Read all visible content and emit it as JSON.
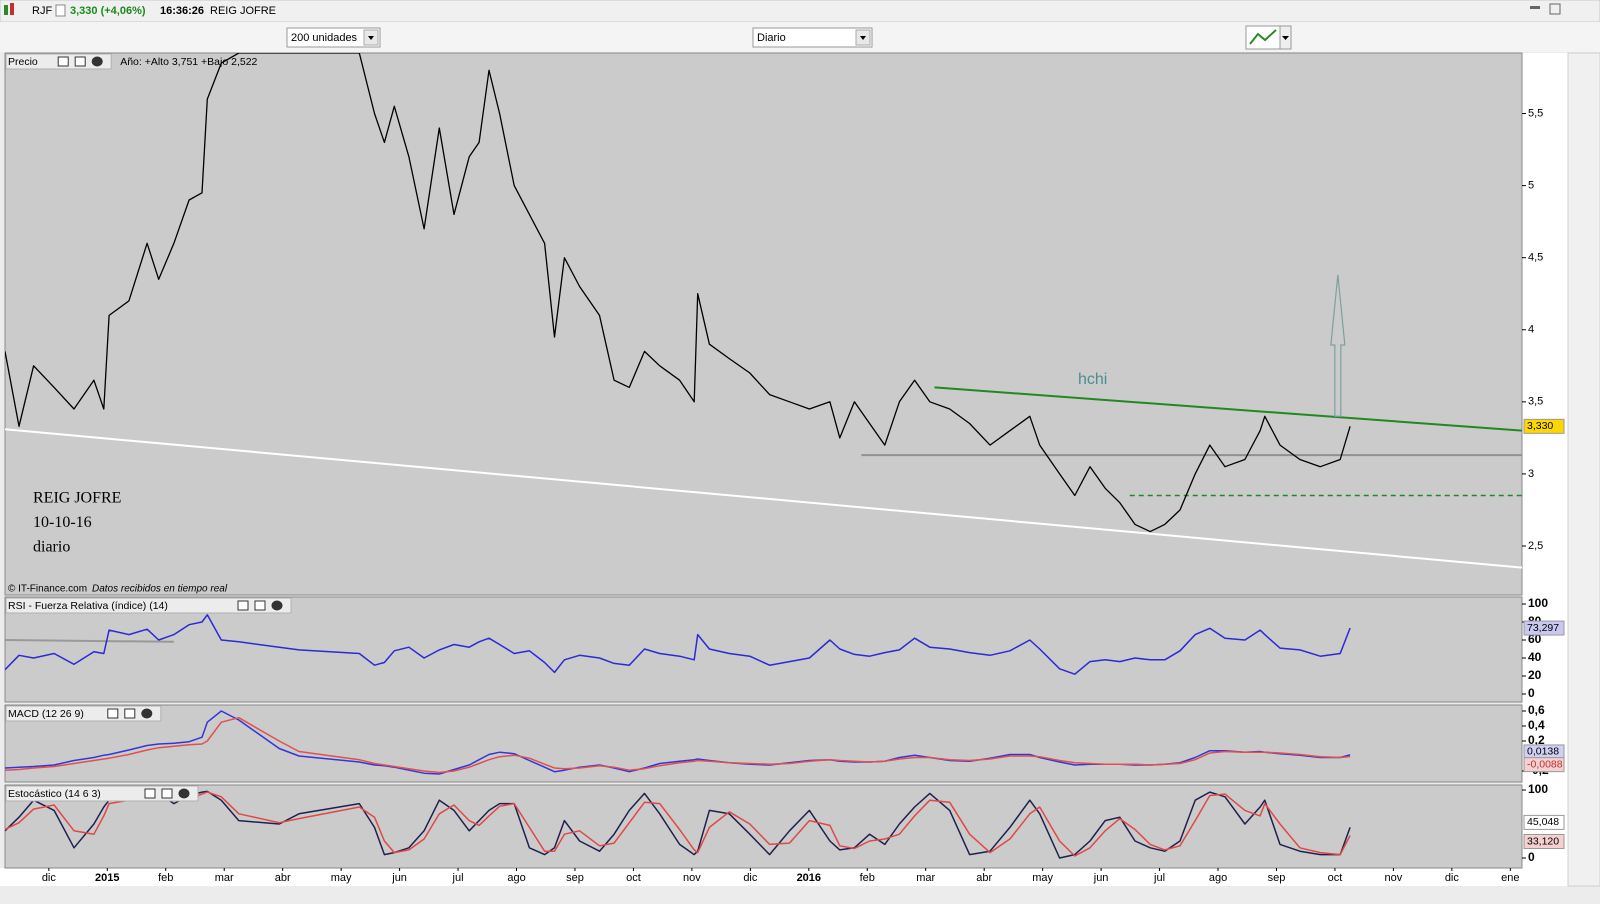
{
  "toolbar": {
    "symbol": "RJF",
    "quote": "3,330 (+4,06%)",
    "time": "16:36:26",
    "name": "REIG JOFRE",
    "units": "200 unidades",
    "period": "Diario"
  },
  "chart_data": [
    {
      "type": "line",
      "title": "Precio",
      "subtitle": "Año: +Alto 3,751 +Bajo 2,522",
      "xlim": [
        -0.75,
        25.2
      ],
      "ylim": [
        2.16,
        5.92
      ],
      "yticks": [
        {
          "value": 2.5,
          "label": "2,5"
        },
        3,
        {
          "value": 3.5,
          "label": "3,5"
        },
        4,
        {
          "value": 4.5,
          "label": "4,5"
        },
        5,
        {
          "value": 5.5,
          "label": "5,5"
        }
      ],
      "x": [
        -0.75,
        -0.51,
        -0.26,
        0.09,
        0.43,
        0.77,
        0.94,
        1.03,
        1.37,
        1.68,
        1.88,
        2.14,
        2.4,
        2.62,
        2.71,
        2.95,
        3.25,
        3.94,
        4.28,
        5.31,
        5.57,
        5.74,
        5.91,
        6.16,
        6.42,
        6.68,
        6.93,
        7.19,
        7.36,
        7.53,
        7.71,
        7.96,
        8.22,
        8.48,
        8.65,
        8.82,
        9.08,
        9.42,
        9.67,
        9.93,
        10.19,
        10.45,
        10.79,
        11.04,
        11.1,
        11.3,
        11.64,
        11.99,
        12.33,
        12.67,
        13.01,
        13.36,
        13.53,
        13.78,
        14.04,
        14.3,
        14.55,
        14.81,
        15.07,
        15.41,
        15.75,
        16.1,
        16.44,
        16.78,
        16.95,
        17.29,
        17.55,
        17.81,
        18.07,
        18.32,
        18.58,
        18.84,
        19.09,
        19.35,
        19.61,
        19.86,
        20.12,
        20.46,
        20.72,
        20.8,
        21.06,
        21.4,
        21.75,
        22.09,
        22.26
      ],
      "series": [
        {
          "color": "#000000",
          "last_label": "3,330",
          "label_fill": "#ffd700",
          "values": [
            3.85,
            3.33,
            3.75,
            3.6,
            3.45,
            3.65,
            3.45,
            4.1,
            4.2,
            4.6,
            4.35,
            4.6,
            4.9,
            4.95,
            5.6,
            5.85,
            5.92,
            5.92,
            5.92,
            5.92,
            5.5,
            5.3,
            5.55,
            5.2,
            4.7,
            5.4,
            4.8,
            5.2,
            5.3,
            5.8,
            5.5,
            5.0,
            4.8,
            4.6,
            3.95,
            4.5,
            4.3,
            4.1,
            3.65,
            3.6,
            3.85,
            3.75,
            3.65,
            3.5,
            4.25,
            3.9,
            3.8,
            3.7,
            3.55,
            3.5,
            3.45,
            3.5,
            3.25,
            3.5,
            3.35,
            3.2,
            3.5,
            3.65,
            3.5,
            3.45,
            3.35,
            3.2,
            3.3,
            3.4,
            3.2,
            3.0,
            2.85,
            3.05,
            2.9,
            2.8,
            2.65,
            2.6,
            2.65,
            2.75,
            3.0,
            3.2,
            3.05,
            3.1,
            3.3,
            3.4,
            3.2,
            3.1,
            3.05,
            3.1,
            3.33
          ]
        }
      ],
      "trend_lines": [
        {
          "x": [
            -0.75,
            25.2
          ],
          "y": [
            3.31,
            2.35
          ],
          "color": "#ffffff"
        },
        {
          "x": [
            15.15,
            25.2
          ],
          "y": [
            3.6,
            3.3
          ],
          "color": "#1f8a1f"
        },
        {
          "x": [
            13.9,
            25.2
          ],
          "y": [
            3.13,
            3.13
          ],
          "color": "#909090"
        },
        {
          "x": [
            18.49,
            25.2
          ],
          "y": [
            2.85,
            2.85
          ],
          "color": "#1f8a1f",
          "dashed": true
        },
        {
          "x": [
            22.05,
            22.05
          ],
          "y": [
            3.4,
            4.38
          ],
          "color": "#7f9f9f",
          "arrow": true
        }
      ],
      "pattern_label": "hchi",
      "annotations": [
        "REIG JOFRE",
        "10-10-16",
        "diario"
      ],
      "credit": "© IT-Finance.com",
      "credit_note": "Datos recibidos en tiempo real"
    },
    {
      "type": "line",
      "title": "RSI - Fuerza Relativa (índice) (14)",
      "xlim": [
        -0.75,
        25.2
      ],
      "ylim": [
        -8.9,
        107.8
      ],
      "yticks": [
        0,
        20,
        40,
        60,
        80,
        100
      ],
      "x": [
        -0.75,
        -0.51,
        -0.26,
        0.09,
        0.43,
        0.77,
        0.94,
        1.03,
        1.37,
        1.68,
        1.88,
        2.14,
        2.4,
        2.62,
        2.71,
        2.95,
        3.25,
        3.94,
        4.28,
        5.31,
        5.57,
        5.74,
        5.91,
        6.16,
        6.42,
        6.68,
        6.93,
        7.19,
        7.36,
        7.53,
        7.71,
        7.96,
        8.22,
        8.48,
        8.65,
        8.82,
        9.08,
        9.42,
        9.67,
        9.93,
        10.19,
        10.45,
        10.79,
        11.04,
        11.1,
        11.3,
        11.64,
        11.99,
        12.33,
        12.67,
        13.01,
        13.36,
        13.53,
        13.78,
        14.04,
        14.3,
        14.55,
        14.81,
        15.07,
        15.41,
        15.75,
        16.1,
        16.44,
        16.78,
        16.95,
        17.29,
        17.55,
        17.81,
        18.07,
        18.32,
        18.58,
        18.84,
        19.09,
        19.35,
        19.61,
        19.86,
        20.12,
        20.46,
        20.72,
        20.8,
        21.06,
        21.4,
        21.75,
        22.09,
        22.26
      ],
      "series": [
        {
          "color": "#2a2ad6",
          "last_label": "73,297",
          "label_fill": "#c8c8f0",
          "values": [
            27,
            43,
            40,
            45,
            33,
            47,
            45,
            71,
            66,
            72,
            60,
            66,
            77,
            80,
            88,
            60,
            58,
            52,
            49,
            45,
            32,
            35,
            48,
            52,
            40,
            49,
            55,
            52,
            58,
            62,
            55,
            45,
            48,
            35,
            24,
            38,
            43,
            40,
            34,
            32,
            50,
            45,
            42,
            38,
            66,
            50,
            45,
            42,
            32,
            36,
            40,
            60,
            50,
            44,
            42,
            46,
            49,
            62,
            52,
            50,
            46,
            43,
            48,
            60,
            50,
            28,
            22,
            36,
            38,
            36,
            40,
            38,
            38,
            48,
            66,
            73,
            62,
            60,
            71,
            66,
            51,
            49,
            42,
            45,
            73.297
          ]
        }
      ],
      "trend_lines": [
        {
          "x": [
            -0.75,
            2.14
          ],
          "y": [
            60,
            58
          ],
          "color": "#999999"
        }
      ]
    },
    {
      "type": "line",
      "title": "MACD (12 26 9)",
      "xlim": [
        -0.75,
        25.2
      ],
      "ylim": [
        -0.347,
        0.68
      ],
      "yticks": [
        {
          "value": -0.2,
          "label": "-0,2"
        },
        {
          "value": 0.2,
          "label": "0,2"
        },
        {
          "value": 0.4,
          "label": "0,4"
        },
        {
          "value": 0.6,
          "label": "0,6"
        }
      ],
      "x": [
        -0.75,
        -0.51,
        -0.26,
        0.09,
        0.43,
        0.77,
        0.94,
        1.03,
        1.37,
        1.68,
        1.88,
        2.14,
        2.4,
        2.62,
        2.71,
        2.95,
        3.25,
        3.94,
        4.28,
        5.31,
        5.57,
        5.74,
        5.91,
        6.16,
        6.42,
        6.68,
        6.93,
        7.19,
        7.36,
        7.53,
        7.71,
        7.96,
        8.22,
        8.48,
        8.65,
        8.82,
        9.08,
        9.42,
        9.67,
        9.93,
        10.19,
        10.45,
        10.79,
        11.04,
        11.1,
        11.3,
        11.64,
        11.99,
        12.33,
        12.67,
        13.01,
        13.36,
        13.53,
        13.78,
        14.04,
        14.3,
        14.55,
        14.81,
        15.07,
        15.41,
        15.75,
        16.1,
        16.44,
        16.78,
        16.95,
        17.29,
        17.55,
        17.81,
        18.07,
        18.32,
        18.58,
        18.84,
        19.09,
        19.35,
        19.61,
        19.86,
        20.12,
        20.46,
        20.72,
        20.8,
        21.06,
        21.4,
        21.75,
        22.09,
        22.26
      ],
      "series": [
        {
          "color": "#3535d8",
          "last_label": "0,0138",
          "label_fill": "#d0d0f4",
          "values": [
            -0.16,
            -0.15,
            -0.14,
            -0.12,
            -0.06,
            -0.02,
            0.01,
            0.02,
            0.08,
            0.14,
            0.16,
            0.17,
            0.19,
            0.25,
            0.45,
            0.6,
            0.48,
            0.1,
            0,
            -0.08,
            -0.12,
            -0.13,
            -0.15,
            -0.19,
            -0.23,
            -0.24,
            -0.18,
            -0.12,
            -0.05,
            0.02,
            0.05,
            0.03,
            -0.06,
            -0.15,
            -0.21,
            -0.19,
            -0.15,
            -0.12,
            -0.16,
            -0.21,
            -0.16,
            -0.1,
            -0.07,
            -0.05,
            -0.04,
            -0.06,
            -0.09,
            -0.11,
            -0.12,
            -0.09,
            -0.06,
            -0.05,
            -0.07,
            -0.08,
            -0.08,
            -0.07,
            -0.02,
            0.01,
            -0.02,
            -0.06,
            -0.07,
            -0.03,
            0.02,
            0.02,
            -0.02,
            -0.08,
            -0.12,
            -0.11,
            -0.11,
            -0.11,
            -0.12,
            -0.12,
            -0.11,
            -0.09,
            -0.02,
            0.07,
            0.07,
            0.05,
            0.06,
            0.05,
            0.03,
            0.01,
            -0.02,
            -0.02,
            0.0138
          ]
        },
        {
          "color": "#e05050",
          "last_label": "-0,0088",
          "label_fill": "#f4d0d0",
          "values": [
            -0.19,
            -0.18,
            -0.16,
            -0.14,
            -0.1,
            -0.06,
            -0.04,
            -0.03,
            0.02,
            0.08,
            0.11,
            0.13,
            0.15,
            0.16,
            0.2,
            0.45,
            0.51,
            0.2,
            0.06,
            -0.05,
            -0.1,
            -0.12,
            -0.14,
            -0.17,
            -0.2,
            -0.22,
            -0.2,
            -0.15,
            -0.1,
            -0.05,
            -0.01,
            0.01,
            -0.03,
            -0.11,
            -0.16,
            -0.17,
            -0.16,
            -0.13,
            -0.15,
            -0.19,
            -0.17,
            -0.13,
            -0.09,
            -0.07,
            -0.06,
            -0.07,
            -0.09,
            -0.1,
            -0.11,
            -0.1,
            -0.07,
            -0.05,
            -0.06,
            -0.07,
            -0.08,
            -0.07,
            -0.04,
            -0.02,
            -0.02,
            -0.05,
            -0.06,
            -0.04,
            0,
            0,
            -0.01,
            -0.06,
            -0.09,
            -0.1,
            -0.11,
            -0.11,
            -0.11,
            -0.12,
            -0.11,
            -0.1,
            -0.05,
            0.04,
            0.06,
            0.05,
            0.05,
            0.05,
            0.04,
            0.02,
            -0.01,
            -0.02,
            -0.0088
          ]
        }
      ]
    },
    {
      "type": "line",
      "title": "Estocástico (14 6 3)",
      "xlim": [
        -0.75,
        25.2
      ],
      "ylim": [
        -14.7,
        107.4
      ],
      "yticks": [
        0,
        100
      ],
      "xticks": [
        {
          "value": 0,
          "label": "dic"
        },
        {
          "value": 1,
          "label": "2015"
        },
        {
          "value": 2,
          "label": "feb"
        },
        {
          "value": 3,
          "label": "mar"
        },
        {
          "value": 4,
          "label": "abr"
        },
        {
          "value": 5,
          "label": "may"
        },
        {
          "value": 6,
          "label": "jun"
        },
        {
          "value": 7,
          "label": "jul"
        },
        {
          "value": 8,
          "label": "ago"
        },
        {
          "value": 9,
          "label": "sep"
        },
        {
          "value": 10,
          "label": "oct"
        },
        {
          "value": 11,
          "label": "nov"
        },
        {
          "value": 12,
          "label": "dic"
        },
        {
          "value": 13,
          "label": "2016"
        },
        {
          "value": 14,
          "label": "feb"
        },
        {
          "value": 15,
          "label": "mar"
        },
        {
          "value": 16,
          "label": "abr"
        },
        {
          "value": 17,
          "label": "may"
        },
        {
          "value": 18,
          "label": "jun"
        },
        {
          "value": 19,
          "label": "jul"
        },
        {
          "value": 20,
          "label": "ago"
        },
        {
          "value": 21,
          "label": "sep"
        },
        {
          "value": 22,
          "label": "oct"
        },
        {
          "value": 23,
          "label": "nov"
        },
        {
          "value": 24,
          "label": "dic"
        },
        {
          "value": 25,
          "label": "ene"
        }
      ],
      "x": [
        -0.75,
        -0.51,
        -0.26,
        0.09,
        0.43,
        0.77,
        0.94,
        1.03,
        1.37,
        1.68,
        1.88,
        2.14,
        2.4,
        2.62,
        2.71,
        2.95,
        3.25,
        3.94,
        4.28,
        5.31,
        5.57,
        5.74,
        5.91,
        6.16,
        6.42,
        6.68,
        6.93,
        7.19,
        7.36,
        7.53,
        7.71,
        7.96,
        8.22,
        8.48,
        8.65,
        8.82,
        9.08,
        9.42,
        9.67,
        9.93,
        10.19,
        10.45,
        10.79,
        11.04,
        11.1,
        11.3,
        11.64,
        11.99,
        12.33,
        12.67,
        13.01,
        13.36,
        13.53,
        13.78,
        14.04,
        14.3,
        14.55,
        14.81,
        15.07,
        15.41,
        15.75,
        16.1,
        16.44,
        16.78,
        16.95,
        17.29,
        17.55,
        17.81,
        18.07,
        18.32,
        18.58,
        18.84,
        19.09,
        19.35,
        19.61,
        19.86,
        20.12,
        20.46,
        20.72,
        20.8,
        21.06,
        21.4,
        21.75,
        22.09,
        22.26
      ],
      "series": [
        {
          "color": "#202050",
          "last_label": "45,048",
          "label_fill": "#ffffff",
          "values": [
            40,
            60,
            85,
            70,
            15,
            50,
            75,
            85,
            85,
            100,
            95,
            80,
            92,
            97,
            98,
            85,
            55,
            50,
            65,
            80,
            45,
            5,
            8,
            15,
            40,
            85,
            70,
            40,
            55,
            70,
            80,
            80,
            15,
            5,
            15,
            55,
            25,
            10,
            35,
            70,
            95,
            65,
            20,
            5,
            10,
            70,
            65,
            35,
            5,
            40,
            70,
            25,
            12,
            15,
            35,
            20,
            50,
            75,
            95,
            70,
            5,
            10,
            45,
            85,
            65,
            0,
            5,
            25,
            55,
            60,
            25,
            15,
            10,
            25,
            85,
            97,
            90,
            50,
            75,
            85,
            20,
            10,
            5,
            5,
            45.048
          ]
        },
        {
          "color": "#e04848",
          "last_label": "33,120",
          "label_fill": "#f4d0d0",
          "values": [
            42,
            52,
            72,
            78,
            40,
            35,
            62,
            80,
            85,
            93,
            97,
            88,
            86,
            94,
            97,
            90,
            65,
            52,
            58,
            75,
            60,
            25,
            8,
            12,
            28,
            65,
            78,
            55,
            48,
            62,
            76,
            80,
            45,
            10,
            10,
            35,
            40,
            18,
            22,
            52,
            82,
            80,
            42,
            12,
            8,
            45,
            68,
            50,
            20,
            22,
            55,
            48,
            18,
            14,
            25,
            28,
            35,
            62,
            85,
            82,
            35,
            8,
            28,
            65,
            75,
            25,
            3,
            15,
            40,
            58,
            42,
            20,
            12,
            18,
            55,
            92,
            94,
            70,
            62,
            80,
            50,
            15,
            8,
            5,
            33.12
          ]
        }
      ]
    }
  ]
}
